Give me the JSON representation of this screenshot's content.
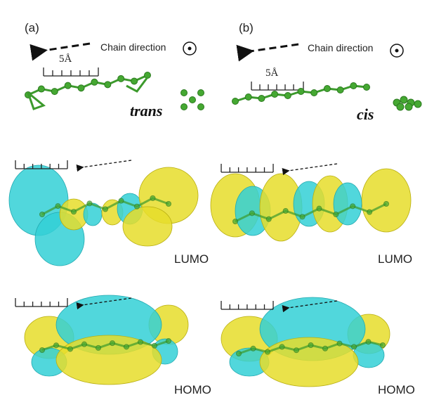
{
  "panels": [
    {
      "label": "(a)",
      "direction": "Chain direction",
      "scale": "5Å",
      "conformation": "trans",
      "orbitals": [
        "LUMO",
        "HOMO"
      ]
    },
    {
      "label": "(b)",
      "direction": "Chain direction",
      "scale": "5Å",
      "conformation": "cis",
      "orbitals": [
        "LUMO",
        "HOMO"
      ]
    }
  ]
}
